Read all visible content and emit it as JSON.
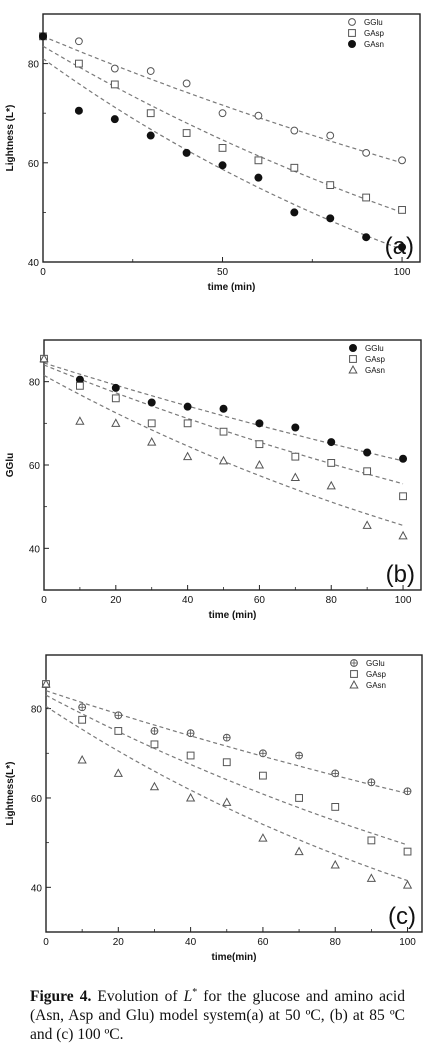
{
  "chart_data": [
    {
      "type": "scatter",
      "panel_label": "(a)",
      "xlabel": "time (min)",
      "ylabel": "Lightness (L*)",
      "xlim": [
        0,
        105
      ],
      "ylim": [
        40,
        90
      ],
      "xticks": [
        0,
        50,
        100
      ],
      "yticks": [
        40,
        60,
        80
      ],
      "legend": "top-right",
      "fit": "dashed exponential",
      "series": [
        {
          "name": "GGlu",
          "marker": "circle-open",
          "x": [
            0,
            10,
            20,
            30,
            40,
            50,
            60,
            70,
            80,
            90,
            100
          ],
          "y": [
            85.5,
            84.5,
            79,
            78.5,
            76,
            70,
            69.5,
            66.5,
            65.5,
            62,
            60.5
          ],
          "fit": [
            85.5,
            60
          ]
        },
        {
          "name": "GAsp",
          "marker": "square-open",
          "x": [
            0,
            10,
            20,
            30,
            40,
            50,
            60,
            70,
            80,
            90,
            100
          ],
          "y": [
            85.5,
            80,
            75.8,
            70,
            66,
            63,
            60.5,
            59,
            55.5,
            53,
            50.5
          ],
          "fit": [
            83.5,
            50
          ]
        },
        {
          "name": "GAsn",
          "marker": "circle-filled",
          "x": [
            0,
            10,
            20,
            30,
            40,
            50,
            60,
            70,
            80,
            90,
            100
          ],
          "y": [
            85.5,
            70.5,
            68.8,
            65.5,
            62,
            59.5,
            57,
            50,
            48.8,
            45,
            43
          ],
          "fit": [
            81,
            42.5
          ]
        }
      ]
    },
    {
      "type": "scatter",
      "panel_label": "(b)",
      "xlabel": "time (min)",
      "ylabel": "GGlu",
      "xlim": [
        0,
        105
      ],
      "ylim": [
        30,
        90
      ],
      "xticks": [
        0,
        20,
        40,
        60,
        80,
        100
      ],
      "yticks": [
        40,
        60,
        80
      ],
      "legend": "top-right",
      "fit": "dashed exponential",
      "series": [
        {
          "name": "GGlu",
          "marker": "circle-filled",
          "x": [
            0,
            10,
            20,
            30,
            40,
            50,
            60,
            70,
            80,
            90,
            100
          ],
          "y": [
            85.5,
            80.5,
            78.5,
            75,
            74,
            73.5,
            70,
            69,
            65.5,
            63,
            61.5
          ],
          "fit": [
            84.5,
            61
          ]
        },
        {
          "name": "GAsp",
          "marker": "square-open",
          "x": [
            0,
            10,
            20,
            30,
            40,
            50,
            60,
            70,
            80,
            90,
            100
          ],
          "y": [
            85.5,
            79,
            76,
            70,
            70,
            68,
            65,
            62,
            60.5,
            58.5,
            52.5
          ],
          "fit": [
            84,
            55.5
          ]
        },
        {
          "name": "GAsn",
          "marker": "triangle-open",
          "x": [
            0,
            10,
            20,
            30,
            40,
            50,
            60,
            70,
            80,
            90,
            100
          ],
          "y": [
            85.5,
            70.5,
            70,
            65.5,
            62,
            61,
            60,
            57,
            55,
            45.5,
            43
          ],
          "fit": [
            81.5,
            45.5
          ]
        }
      ]
    },
    {
      "type": "scatter",
      "panel_label": "(c)",
      "xlabel": "time(min)",
      "ylabel": "Lightness(L*)",
      "xlim": [
        0,
        104
      ],
      "ylim": [
        30,
        92
      ],
      "xticks": [
        0,
        20,
        40,
        60,
        80,
        100
      ],
      "yticks": [
        40,
        60,
        80
      ],
      "legend": "top-right",
      "fit": "dashed exponential",
      "series": [
        {
          "name": "GGlu",
          "marker": "circle-cross",
          "x": [
            0,
            10,
            20,
            30,
            40,
            50,
            60,
            70,
            80,
            90,
            100
          ],
          "y": [
            85.5,
            80.3,
            78.5,
            75,
            74.5,
            73.5,
            70,
            69.5,
            65.5,
            63.5,
            61.5
          ],
          "fit": [
            84,
            61
          ]
        },
        {
          "name": "GAsp",
          "marker": "square-open",
          "x": [
            0,
            10,
            20,
            30,
            40,
            50,
            60,
            70,
            80,
            90,
            100
          ],
          "y": [
            85.5,
            77.5,
            75,
            72,
            69.5,
            68,
            65,
            60,
            58,
            50.5,
            48
          ],
          "fit": [
            83,
            49.5
          ]
        },
        {
          "name": "GAsn",
          "marker": "triangle-open",
          "x": [
            0,
            10,
            20,
            30,
            40,
            50,
            60,
            70,
            80,
            90,
            100
          ],
          "y": [
            85.5,
            68.5,
            65.5,
            62.5,
            60,
            59,
            51,
            48,
            45,
            42,
            40.5
          ],
          "fit": [
            80.5,
            41.5
          ]
        }
      ]
    }
  ],
  "caption": {
    "figure_label": "Figure 4.",
    "text_before": " Evolution of ",
    "symbol": "L",
    "superscript": "*",
    "text_after": " for the glucose and amino acid (Asn, Asp and Glu) model system(a) at 50 ºC, (b) at 85 ºC and (c) 100 ºC."
  }
}
